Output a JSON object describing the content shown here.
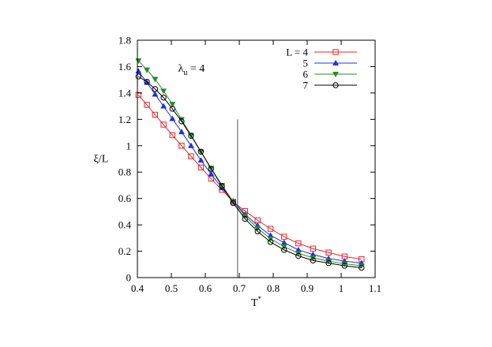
{
  "chart_data": {
    "type": "line",
    "xlabel": "T",
    "xlabel_sup": "*",
    "ylabel": "ξ/L",
    "xlim": [
      0.4,
      1.1
    ],
    "ylim": [
      0,
      1.8
    ],
    "xticks": [
      0.4,
      0.5,
      0.6,
      0.7,
      0.8,
      0.9,
      1,
      1.1
    ],
    "xtick_labels": [
      "0.4",
      "0.5",
      "0.6",
      "0.7",
      "0.8",
      "0.9",
      "1",
      "1.1"
    ],
    "yticks": [
      0,
      0.2,
      0.4,
      0.6,
      0.8,
      1,
      1.2,
      1.4,
      1.6,
      1.8
    ],
    "ytick_labels": [
      "0",
      "0.2",
      "0.4",
      "0.6",
      "0.8",
      "1",
      "1.2",
      "1.4",
      "1.6",
      "1.8"
    ],
    "annotation": {
      "base": "λ",
      "sub": "u",
      "rest": " = 4",
      "x": 0.52,
      "y": 1.56
    },
    "vline": {
      "x": 0.695,
      "y_range": [
        0,
        1.2
      ]
    },
    "grid": false,
    "legend_position": "top-right",
    "series": [
      {
        "name": "L = 4",
        "color": "#e8262b",
        "marker": "square",
        "x": [
          0.403,
          0.428,
          0.452,
          0.477,
          0.503,
          0.53,
          0.558,
          0.587,
          0.617,
          0.649,
          0.682,
          0.717,
          0.754,
          0.792,
          0.832,
          0.874,
          0.917,
          0.963,
          1.01,
          1.06
        ],
        "y": [
          1.385,
          1.31,
          1.235,
          1.16,
          1.08,
          1.0,
          0.92,
          0.835,
          0.75,
          0.665,
          0.575,
          0.505,
          0.435,
          0.37,
          0.31,
          0.26,
          0.22,
          0.19,
          0.16,
          0.14
        ]
      },
      {
        "name": "5",
        "color": "#2030e0",
        "marker": "triangle-up",
        "x": [
          0.403,
          0.428,
          0.452,
          0.477,
          0.503,
          0.53,
          0.558,
          0.587,
          0.617,
          0.649,
          0.682,
          0.717,
          0.754,
          0.792,
          0.832,
          0.874,
          0.917,
          0.963,
          1.01,
          1.06
        ],
        "y": [
          1.565,
          1.48,
          1.39,
          1.3,
          1.205,
          1.105,
          1.0,
          0.89,
          0.785,
          0.68,
          0.58,
          0.48,
          0.395,
          0.32,
          0.265,
          0.21,
          0.175,
          0.145,
          0.125,
          0.11
        ]
      },
      {
        "name": "6",
        "color": "#2d8a2d",
        "marker": "triangle-down",
        "x": [
          0.403,
          0.428,
          0.452,
          0.477,
          0.503,
          0.53,
          0.558,
          0.587,
          0.617,
          0.649,
          0.682,
          0.717,
          0.754,
          0.792,
          0.832,
          0.874,
          0.917,
          0.963,
          1.01,
          1.06
        ],
        "y": [
          1.645,
          1.575,
          1.505,
          1.415,
          1.315,
          1.2,
          1.08,
          0.955,
          0.83,
          0.7,
          0.575,
          0.465,
          0.375,
          0.295,
          0.235,
          0.185,
          0.15,
          0.125,
          0.105,
          0.09
        ]
      },
      {
        "name": "7",
        "color": "#000000",
        "marker": "circle",
        "x": [
          0.403,
          0.428,
          0.452,
          0.477,
          0.503,
          0.53,
          0.558,
          0.587,
          0.617,
          0.649,
          0.682,
          0.717,
          0.754,
          0.792,
          0.832,
          0.874,
          0.917,
          0.963,
          1.01,
          1.06
        ],
        "y": [
          1.525,
          1.485,
          1.43,
          1.365,
          1.28,
          1.185,
          1.075,
          0.955,
          0.825,
          0.695,
          0.565,
          0.445,
          0.35,
          0.27,
          0.21,
          0.165,
          0.13,
          0.11,
          0.09,
          0.075
        ]
      }
    ]
  }
}
